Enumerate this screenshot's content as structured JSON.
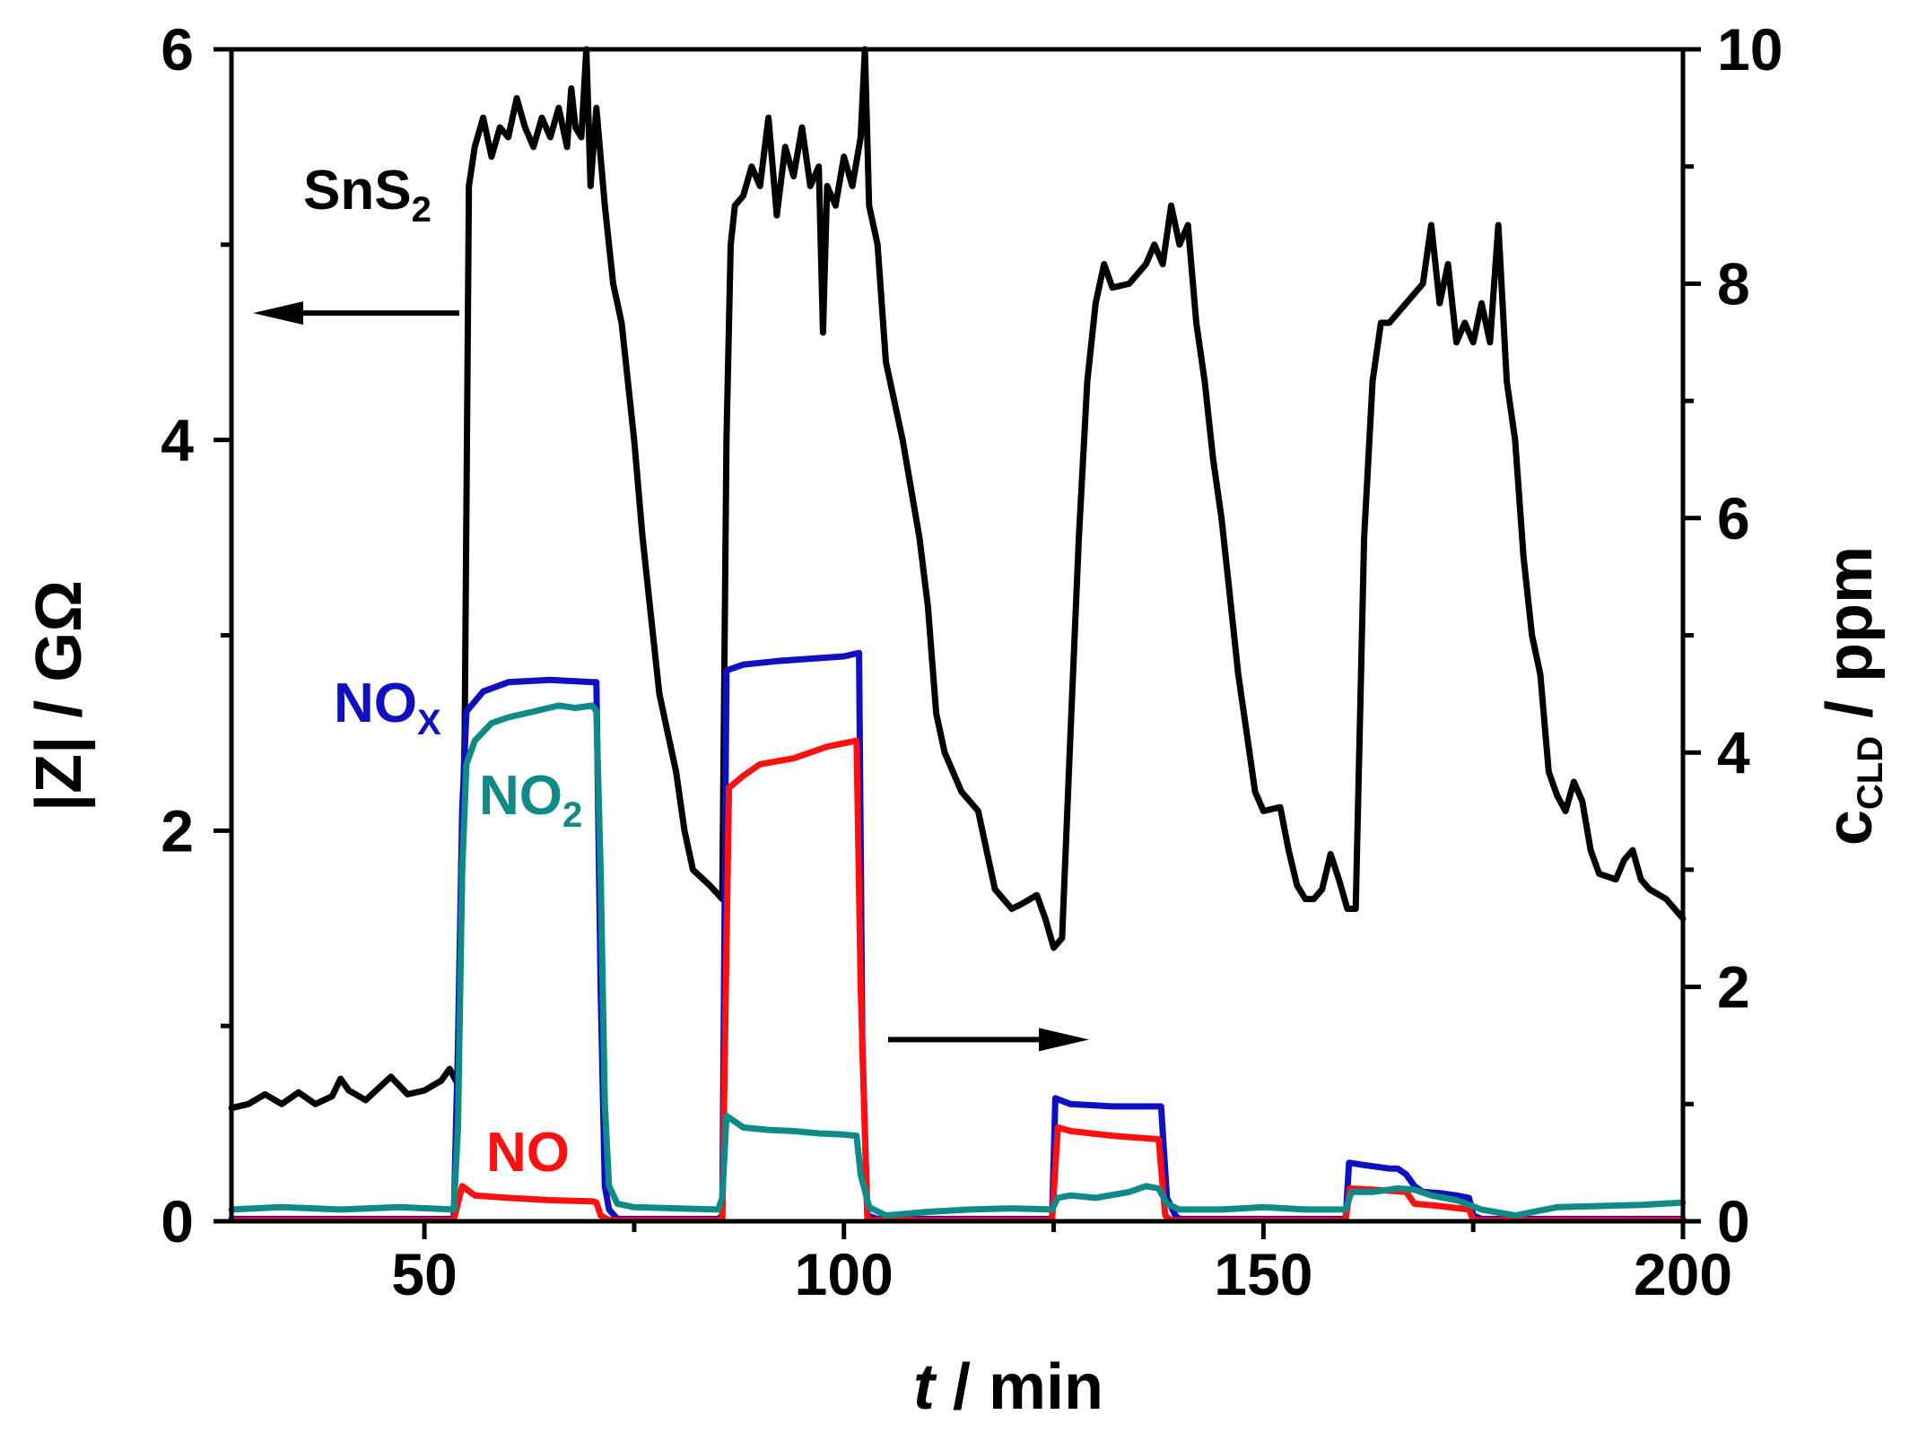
{
  "chart_data": {
    "type": "line",
    "title": "",
    "xlabel": {
      "italic": "t",
      "rest": " / min"
    },
    "ylabel_left": "|Z| / GΩ",
    "ylabel_right": {
      "main": "c",
      "sub": "CLD",
      "rest": " / ppm"
    },
    "xlim": [
      27,
      200
    ],
    "ylim_left": [
      0,
      6
    ],
    "ylim_right": [
      0,
      10
    ],
    "x_ticks": [
      50,
      100,
      150,
      200
    ],
    "y_left_ticks": [
      0,
      2,
      4,
      6
    ],
    "y_right_ticks": [
      0,
      2,
      4,
      6,
      8,
      10
    ],
    "labels": {
      "sns2": {
        "main": "SnS",
        "sub": "2",
        "color": "#000000"
      },
      "nox": {
        "main": "NO",
        "sub": "X",
        "color": "#1010C0"
      },
      "no2": {
        "main": "NO",
        "sub": "2",
        "color": "#108A86"
      },
      "no": {
        "main": "NO",
        "sub": "",
        "color": "#FF1010"
      }
    },
    "arrows": [
      {
        "points_to": "left-axis",
        "at_x": 40,
        "at_y_left": 4.65
      },
      {
        "points_to": "right-axis",
        "at_x": 115,
        "at_y_left": 0.93
      }
    ],
    "series": [
      {
        "name": "SnS2 |Z|",
        "axis": "left",
        "color": "#000000",
        "points": [
          [
            27,
            0.58
          ],
          [
            29,
            0.6
          ],
          [
            31,
            0.65
          ],
          [
            33,
            0.6
          ],
          [
            35,
            0.66
          ],
          [
            37,
            0.6
          ],
          [
            39,
            0.64
          ],
          [
            40,
            0.73
          ],
          [
            41,
            0.67
          ],
          [
            43,
            0.62
          ],
          [
            45,
            0.7
          ],
          [
            46,
            0.74
          ],
          [
            48,
            0.65
          ],
          [
            50,
            0.67
          ],
          [
            52,
            0.72
          ],
          [
            53,
            0.78
          ],
          [
            54,
            0.7
          ],
          [
            54.8,
            2.5
          ],
          [
            55.3,
            5.3
          ],
          [
            56,
            5.5
          ],
          [
            57,
            5.65
          ],
          [
            58,
            5.45
          ],
          [
            59,
            5.6
          ],
          [
            60,
            5.55
          ],
          [
            61,
            5.75
          ],
          [
            62,
            5.6
          ],
          [
            63,
            5.5
          ],
          [
            64,
            5.65
          ],
          [
            65,
            5.55
          ],
          [
            66,
            5.7
          ],
          [
            67,
            5.5
          ],
          [
            67.5,
            5.8
          ],
          [
            68,
            5.6
          ],
          [
            68.7,
            5.55
          ],
          [
            69.3,
            6.0
          ],
          [
            69.8,
            5.3
          ],
          [
            70.5,
            5.7
          ],
          [
            71.5,
            5.2
          ],
          [
            72.5,
            4.8
          ],
          [
            73.5,
            4.6
          ],
          [
            75,
            4.0
          ],
          [
            76,
            3.5
          ],
          [
            77,
            3.1
          ],
          [
            78,
            2.7
          ],
          [
            79,
            2.5
          ],
          [
            80,
            2.3
          ],
          [
            81,
            2.0
          ],
          [
            82,
            1.8
          ],
          [
            84,
            1.72
          ],
          [
            85.5,
            1.65
          ],
          [
            86,
            4.0
          ],
          [
            86.5,
            5.0
          ],
          [
            87,
            5.2
          ],
          [
            88,
            5.25
          ],
          [
            89,
            5.4
          ],
          [
            90,
            5.3
          ],
          [
            91,
            5.65
          ],
          [
            92,
            5.15
          ],
          [
            93,
            5.5
          ],
          [
            94,
            5.35
          ],
          [
            95,
            5.6
          ],
          [
            96,
            5.3
          ],
          [
            97,
            5.4
          ],
          [
            97.5,
            4.55
          ],
          [
            98,
            5.3
          ],
          [
            99,
            5.2
          ],
          [
            100,
            5.45
          ],
          [
            101,
            5.3
          ],
          [
            102,
            5.55
          ],
          [
            102.5,
            6.0
          ],
          [
            103,
            5.2
          ],
          [
            104,
            5.0
          ],
          [
            105,
            4.4
          ],
          [
            107,
            4.0
          ],
          [
            109,
            3.5
          ],
          [
            110,
            3.15
          ],
          [
            111,
            2.6
          ],
          [
            112,
            2.4
          ],
          [
            114,
            2.2
          ],
          [
            116,
            2.1
          ],
          [
            117,
            1.9
          ],
          [
            118,
            1.7
          ],
          [
            120,
            1.6
          ],
          [
            121,
            1.62
          ],
          [
            123,
            1.67
          ],
          [
            124,
            1.55
          ],
          [
            125,
            1.4
          ],
          [
            126,
            1.45
          ],
          [
            127,
            2.5
          ],
          [
            128,
            3.5
          ],
          [
            129,
            4.3
          ],
          [
            130,
            4.7
          ],
          [
            131,
            4.9
          ],
          [
            132,
            4.78
          ],
          [
            134,
            4.8
          ],
          [
            136,
            4.9
          ],
          [
            137,
            5.0
          ],
          [
            138,
            4.9
          ],
          [
            139,
            5.2
          ],
          [
            140,
            5.0
          ],
          [
            141,
            5.1
          ],
          [
            142,
            4.6
          ],
          [
            143,
            4.3
          ],
          [
            144,
            3.9
          ],
          [
            145,
            3.6
          ],
          [
            146,
            3.2
          ],
          [
            147,
            2.8
          ],
          [
            148,
            2.5
          ],
          [
            149,
            2.2
          ],
          [
            150,
            2.1
          ],
          [
            152,
            2.12
          ],
          [
            153,
            1.9
          ],
          [
            154,
            1.72
          ],
          [
            155,
            1.65
          ],
          [
            156,
            1.65
          ],
          [
            157,
            1.7
          ],
          [
            158,
            1.88
          ],
          [
            159,
            1.75
          ],
          [
            160,
            1.6
          ],
          [
            161,
            1.6
          ],
          [
            162,
            3.5
          ],
          [
            163,
            4.3
          ],
          [
            164,
            4.6
          ],
          [
            165,
            4.6
          ],
          [
            167,
            4.7
          ],
          [
            169,
            4.8
          ],
          [
            170,
            5.1
          ],
          [
            171,
            4.7
          ],
          [
            172,
            4.9
          ],
          [
            173,
            4.5
          ],
          [
            174,
            4.6
          ],
          [
            175,
            4.5
          ],
          [
            176,
            4.7
          ],
          [
            177,
            4.5
          ],
          [
            178,
            5.1
          ],
          [
            179,
            4.3
          ],
          [
            180,
            4.0
          ],
          [
            181,
            3.4
          ],
          [
            182,
            3.0
          ],
          [
            183,
            2.8
          ],
          [
            184,
            2.3
          ],
          [
            185,
            2.18
          ],
          [
            186,
            2.1
          ],
          [
            187,
            2.25
          ],
          [
            188,
            2.15
          ],
          [
            189,
            1.9
          ],
          [
            190,
            1.78
          ],
          [
            192,
            1.75
          ],
          [
            193,
            1.85
          ],
          [
            194,
            1.9
          ],
          [
            195,
            1.75
          ],
          [
            196,
            1.7
          ],
          [
            198,
            1.65
          ],
          [
            200,
            1.55
          ]
        ]
      },
      {
        "name": "NOx",
        "axis": "right",
        "color": "#1010C0",
        "points": [
          [
            27,
            0.02
          ],
          [
            53.5,
            0.02
          ],
          [
            54,
            1.5
          ],
          [
            54.5,
            3.5
          ],
          [
            55,
            4.35
          ],
          [
            57,
            4.52
          ],
          [
            60,
            4.6
          ],
          [
            65,
            4.62
          ],
          [
            70,
            4.6
          ],
          [
            70.5,
            4.6
          ],
          [
            71,
            2.0
          ],
          [
            71.5,
            0.3
          ],
          [
            72,
            0.1
          ],
          [
            73,
            0.02
          ],
          [
            85,
            0.02
          ],
          [
            85.5,
            0.05
          ],
          [
            86,
            4.7
          ],
          [
            88,
            4.75
          ],
          [
            92,
            4.78
          ],
          [
            96,
            4.8
          ],
          [
            100,
            4.82
          ],
          [
            101.8,
            4.85
          ],
          [
            102.2,
            1.5
          ],
          [
            102.8,
            0.05
          ],
          [
            104,
            0.02
          ],
          [
            124.8,
            0.02
          ],
          [
            125.2,
            1.05
          ],
          [
            127,
            1.0
          ],
          [
            132,
            0.98
          ],
          [
            136,
            0.98
          ],
          [
            137.8,
            0.98
          ],
          [
            138.5,
            0.2
          ],
          [
            139.5,
            0.05
          ],
          [
            140,
            0.02
          ],
          [
            159.8,
            0.02
          ],
          [
            160.2,
            0.5
          ],
          [
            162,
            0.48
          ],
          [
            165,
            0.45
          ],
          [
            166,
            0.45
          ],
          [
            167,
            0.4
          ],
          [
            168,
            0.3
          ],
          [
            169,
            0.25
          ],
          [
            171,
            0.24
          ],
          [
            173,
            0.22
          ],
          [
            174.5,
            0.2
          ],
          [
            175,
            0.05
          ],
          [
            176,
            0.02
          ],
          [
            200,
            0.02
          ]
        ]
      },
      {
        "name": "NO",
        "axis": "right",
        "color": "#FF1010",
        "points": [
          [
            27,
            0.01
          ],
          [
            53.5,
            0.01
          ],
          [
            54.5,
            0.3
          ],
          [
            56,
            0.22
          ],
          [
            60,
            0.2
          ],
          [
            65,
            0.18
          ],
          [
            70,
            0.17
          ],
          [
            70.5,
            0.16
          ],
          [
            71,
            0.05
          ],
          [
            72,
            0.01
          ],
          [
            85.5,
            0.01
          ],
          [
            86.3,
            3.7
          ],
          [
            88,
            3.8
          ],
          [
            90,
            3.9
          ],
          [
            94,
            3.95
          ],
          [
            98,
            4.05
          ],
          [
            101.5,
            4.1
          ],
          [
            102,
            2.0
          ],
          [
            102.8,
            0.01
          ],
          [
            124.8,
            0.01
          ],
          [
            125.5,
            0.8
          ],
          [
            127,
            0.77
          ],
          [
            132,
            0.73
          ],
          [
            137.5,
            0.7
          ],
          [
            138.3,
            0.05
          ],
          [
            139,
            0.01
          ],
          [
            159.8,
            0.01
          ],
          [
            160.3,
            0.28
          ],
          [
            163,
            0.27
          ],
          [
            167,
            0.25
          ],
          [
            168,
            0.15
          ],
          [
            171,
            0.13
          ],
          [
            174.5,
            0.1
          ],
          [
            175,
            0.01
          ],
          [
            200,
            0.01
          ]
        ]
      },
      {
        "name": "NO2",
        "axis": "right",
        "color": "#108A86",
        "points": [
          [
            27,
            0.1
          ],
          [
            33,
            0.12
          ],
          [
            40,
            0.1
          ],
          [
            47,
            0.12
          ],
          [
            53.5,
            0.1
          ],
          [
            54,
            0.8
          ],
          [
            54.5,
            3.0
          ],
          [
            55,
            3.9
          ],
          [
            56,
            4.1
          ],
          [
            58,
            4.25
          ],
          [
            60,
            4.3
          ],
          [
            63,
            4.35
          ],
          [
            66,
            4.4
          ],
          [
            68,
            4.38
          ],
          [
            70,
            4.4
          ],
          [
            70.5,
            4.35
          ],
          [
            71,
            3.0
          ],
          [
            71.5,
            1.0
          ],
          [
            72,
            0.3
          ],
          [
            73,
            0.15
          ],
          [
            75,
            0.12
          ],
          [
            80,
            0.11
          ],
          [
            85,
            0.1
          ],
          [
            85.5,
            0.2
          ],
          [
            86,
            0.9
          ],
          [
            88,
            0.8
          ],
          [
            91,
            0.78
          ],
          [
            94,
            0.77
          ],
          [
            97,
            0.75
          ],
          [
            100,
            0.74
          ],
          [
            101.5,
            0.73
          ],
          [
            102,
            0.4
          ],
          [
            103,
            0.12
          ],
          [
            105,
            0.05
          ],
          [
            110,
            0.08
          ],
          [
            115,
            0.1
          ],
          [
            120,
            0.11
          ],
          [
            124.8,
            0.1
          ],
          [
            125.5,
            0.2
          ],
          [
            127,
            0.22
          ],
          [
            130,
            0.2
          ],
          [
            134,
            0.25
          ],
          [
            136,
            0.3
          ],
          [
            137.5,
            0.28
          ],
          [
            138.5,
            0.15
          ],
          [
            140,
            0.1
          ],
          [
            145,
            0.1
          ],
          [
            150,
            0.12
          ],
          [
            155,
            0.1
          ],
          [
            159.8,
            0.1
          ],
          [
            160.5,
            0.25
          ],
          [
            163,
            0.25
          ],
          [
            166,
            0.28
          ],
          [
            168,
            0.27
          ],
          [
            170,
            0.22
          ],
          [
            173,
            0.18
          ],
          [
            176,
            0.1
          ],
          [
            180,
            0.05
          ],
          [
            185,
            0.12
          ],
          [
            190,
            0.13
          ],
          [
            195,
            0.14
          ],
          [
            200,
            0.16
          ]
        ]
      }
    ]
  }
}
